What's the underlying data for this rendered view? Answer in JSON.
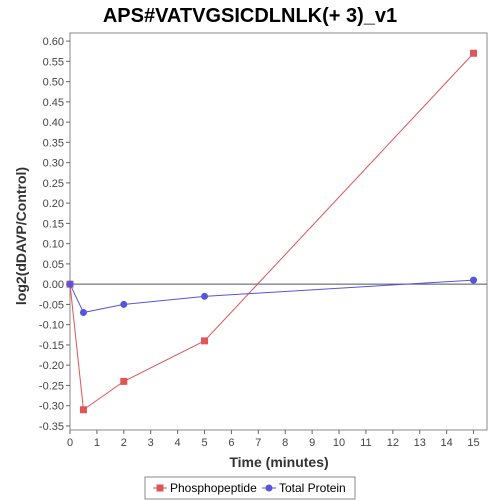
{
  "chart_data": {
    "type": "line",
    "title": "APS#VATVGSICDLNLK(+ 3)_v1",
    "xlabel": "Time (minutes)",
    "ylabel": "log2(dDAVP/Control)",
    "xlim": [
      0,
      15.5
    ],
    "ylim": [
      -0.36,
      0.62
    ],
    "x_ticks": [
      0,
      1,
      2,
      3,
      4,
      5,
      6,
      7,
      8,
      9,
      10,
      11,
      12,
      13,
      14,
      15
    ],
    "y_ticks": [
      -0.35,
      -0.3,
      -0.25,
      -0.2,
      -0.15,
      -0.1,
      -0.05,
      0.0,
      0.05,
      0.1,
      0.15,
      0.2,
      0.25,
      0.3,
      0.35,
      0.4,
      0.45,
      0.5,
      0.55,
      0.6
    ],
    "zero_line": true,
    "grid": false,
    "legend_position": "bottom",
    "series": [
      {
        "name": "Phosphopeptide",
        "color": "#e05555",
        "marker": "square",
        "x": [
          0,
          0.5,
          2,
          5,
          15
        ],
        "y": [
          0.0,
          -0.31,
          -0.24,
          -0.14,
          0.57
        ]
      },
      {
        "name": "Total Protein",
        "color": "#5555e0",
        "marker": "circle",
        "x": [
          0,
          0.5,
          2,
          5,
          15
        ],
        "y": [
          0.0,
          -0.07,
          -0.05,
          -0.03,
          0.01
        ]
      }
    ]
  }
}
